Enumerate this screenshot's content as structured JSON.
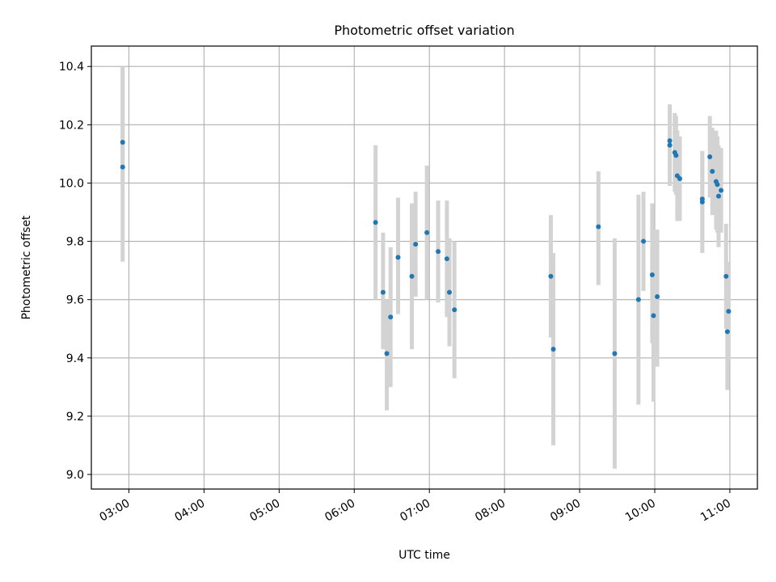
{
  "chart_data": {
    "type": "scatter",
    "title": "Photometric offset variation",
    "xlabel": "UTC time",
    "ylabel": "Photometric offset",
    "x_ticks": [
      "03:00",
      "04:00",
      "05:00",
      "06:00",
      "07:00",
      "08:00",
      "09:00",
      "10:00",
      "11:00"
    ],
    "y_ticks": [
      "9.0",
      "9.2",
      "9.4",
      "9.6",
      "9.8",
      "10.0",
      "10.2",
      "10.4"
    ],
    "xlim": [
      "02:30",
      "11:22"
    ],
    "ylim": [
      8.95,
      10.47
    ],
    "grid": true,
    "colors": {
      "point": "#1f77b4",
      "errorbar": "#d3d3d3",
      "grid": "#b0b0b0"
    },
    "points": [
      {
        "x": "02:55",
        "y": 10.055,
        "err_low": 9.73,
        "err_high": 10.39
      },
      {
        "x": "02:55",
        "y": 10.14,
        "err_low": 10.0,
        "err_high": 10.4
      },
      {
        "x": "06:17",
        "y": 9.865,
        "err_low": 9.6,
        "err_high": 10.13
      },
      {
        "x": "06:23",
        "y": 9.625,
        "err_low": 9.43,
        "err_high": 9.83
      },
      {
        "x": "06:26",
        "y": 9.415,
        "err_low": 9.22,
        "err_high": 9.6
      },
      {
        "x": "06:29",
        "y": 9.54,
        "err_low": 9.3,
        "err_high": 9.78
      },
      {
        "x": "06:35",
        "y": 9.745,
        "err_low": 9.55,
        "err_high": 9.95
      },
      {
        "x": "06:46",
        "y": 9.68,
        "err_low": 9.43,
        "err_high": 9.93
      },
      {
        "x": "06:49",
        "y": 9.79,
        "err_low": 9.61,
        "err_high": 9.97
      },
      {
        "x": "06:58",
        "y": 9.83,
        "err_low": 9.6,
        "err_high": 10.06
      },
      {
        "x": "07:07",
        "y": 9.765,
        "err_low": 9.59,
        "err_high": 9.94
      },
      {
        "x": "07:14",
        "y": 9.74,
        "err_low": 9.54,
        "err_high": 9.94
      },
      {
        "x": "07:16",
        "y": 9.625,
        "err_low": 9.44,
        "err_high": 9.81
      },
      {
        "x": "07:20",
        "y": 9.565,
        "err_low": 9.33,
        "err_high": 9.8
      },
      {
        "x": "08:37",
        "y": 9.68,
        "err_low": 9.47,
        "err_high": 9.89
      },
      {
        "x": "08:39",
        "y": 9.43,
        "err_low": 9.1,
        "err_high": 9.76
      },
      {
        "x": "09:15",
        "y": 9.85,
        "err_low": 9.65,
        "err_high": 10.04
      },
      {
        "x": "09:28",
        "y": 9.415,
        "err_low": 9.02,
        "err_high": 9.81
      },
      {
        "x": "09:47",
        "y": 9.6,
        "err_low": 9.24,
        "err_high": 9.96
      },
      {
        "x": "09:51",
        "y": 9.8,
        "err_low": 9.63,
        "err_high": 9.97
      },
      {
        "x": "09:58",
        "y": 9.685,
        "err_low": 9.45,
        "err_high": 9.93
      },
      {
        "x": "09:59",
        "y": 9.545,
        "err_low": 9.25,
        "err_high": 9.84
      },
      {
        "x": "10:02",
        "y": 9.61,
        "err_low": 9.37,
        "err_high": 9.84
      },
      {
        "x": "10:12",
        "y": 10.13,
        "err_low": 9.99,
        "err_high": 10.27
      },
      {
        "x": "10:12",
        "y": 10.145,
        "err_low": 10.06,
        "err_high": 10.23
      },
      {
        "x": "10:16",
        "y": 10.105,
        "err_low": 9.97,
        "err_high": 10.24
      },
      {
        "x": "10:17",
        "y": 10.095,
        "err_low": 9.96,
        "err_high": 10.23
      },
      {
        "x": "10:18",
        "y": 10.025,
        "err_low": 9.87,
        "err_high": 10.18
      },
      {
        "x": "10:20",
        "y": 10.015,
        "err_low": 9.87,
        "err_high": 10.16
      },
      {
        "x": "10:38",
        "y": 9.935,
        "err_low": 9.76,
        "err_high": 10.11
      },
      {
        "x": "10:38",
        "y": 9.945,
        "err_low": 9.8,
        "err_high": 10.09
      },
      {
        "x": "10:44",
        "y": 10.09,
        "err_low": 9.95,
        "err_high": 10.23
      },
      {
        "x": "10:46",
        "y": 10.04,
        "err_low": 9.89,
        "err_high": 10.19
      },
      {
        "x": "10:49",
        "y": 10.005,
        "err_low": 9.84,
        "err_high": 10.18
      },
      {
        "x": "10:50",
        "y": 9.995,
        "err_low": 9.83,
        "err_high": 10.16
      },
      {
        "x": "10:51",
        "y": 9.955,
        "err_low": 9.78,
        "err_high": 10.13
      },
      {
        "x": "10:53",
        "y": 9.975,
        "err_low": 9.83,
        "err_high": 10.12
      },
      {
        "x": "10:57",
        "y": 9.68,
        "err_low": 9.5,
        "err_high": 9.86
      },
      {
        "x": "10:58",
        "y": 9.49,
        "err_low": 9.29,
        "err_high": 9.69
      },
      {
        "x": "10:59",
        "y": 9.56,
        "err_low": 9.39,
        "err_high": 9.73
      }
    ]
  }
}
